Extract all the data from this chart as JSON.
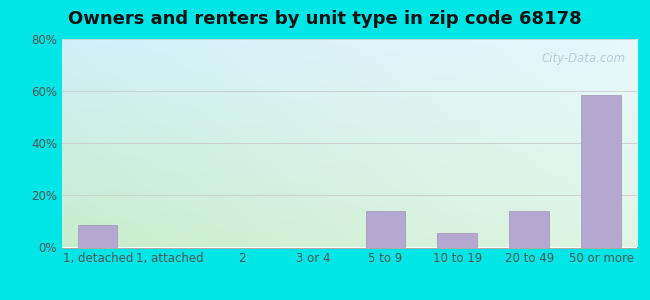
{
  "title": "Owners and renters by unit type in zip code 68178",
  "categories": [
    "1, detached",
    "1, attached",
    "2",
    "3 or 4",
    "5 to 9",
    "10 to 19",
    "20 to 49",
    "50 or more"
  ],
  "values": [
    8.5,
    0,
    0,
    0,
    14,
    5.5,
    14,
    58.5
  ],
  "bar_color": "#b5a8d0",
  "bar_edge_color": "#9e92bb",
  "ylim": [
    0,
    80
  ],
  "yticks": [
    0,
    20,
    40,
    60,
    80
  ],
  "ytick_labels": [
    "0%",
    "20%",
    "40%",
    "60%",
    "80%"
  ],
  "background_outer": "#00e5e5",
  "bg_bottom_left": "#c8edcc",
  "bg_top_right": "#e8f8fc",
  "grid_color": "#cccccc",
  "title_fontsize": 13,
  "tick_fontsize": 8.5,
  "watermark": "City-Data.com"
}
